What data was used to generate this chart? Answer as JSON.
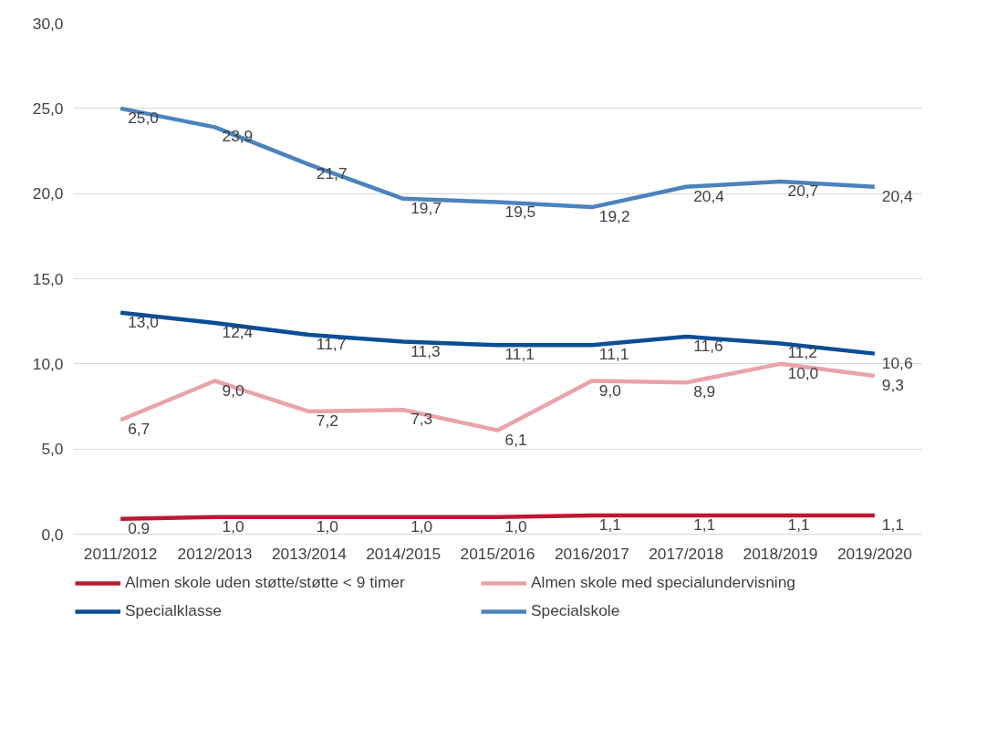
{
  "chart_data": {
    "type": "line",
    "categories": [
      "2011/2012",
      "2012/2013",
      "2013/2014",
      "2014/2015",
      "2015/2016",
      "2016/2017",
      "2017/2018",
      "2018/2019",
      "2019/2020"
    ],
    "series": [
      {
        "name": "Almen skole uden støtte/støtte < 9 timer",
        "color": "#c0182f",
        "values": [
          0.9,
          1.0,
          1.0,
          1.0,
          1.0,
          1.1,
          1.1,
          1.1,
          1.1
        ],
        "value_labels": [
          "0,9",
          "1,0",
          "1,0",
          "1,0",
          "1,0",
          "1,1",
          "1,1",
          "1,1",
          "1,1"
        ]
      },
      {
        "name": "Almen skole med specialundervisning",
        "color": "#e9a3a9",
        "values": [
          6.7,
          9.0,
          7.2,
          7.3,
          6.1,
          9.0,
          8.9,
          10.0,
          9.3
        ],
        "value_labels": [
          "6,7",
          "9,0",
          "7,2",
          "7,3",
          "6,1",
          "9,0",
          "8,9",
          "10,0",
          "9,3"
        ]
      },
      {
        "name": "Specialklasse",
        "color": "#0a4d97",
        "values": [
          13.0,
          12.4,
          11.7,
          11.3,
          11.1,
          11.1,
          11.6,
          11.2,
          10.6
        ],
        "value_labels": [
          "13,0",
          "12,4",
          "11,7",
          "11,3",
          "11,1",
          "11,1",
          "11,6",
          "11,2",
          "10,6"
        ]
      },
      {
        "name": "Specialskole",
        "color": "#4a83bd",
        "values": [
          25.0,
          23.9,
          21.7,
          19.7,
          19.5,
          19.2,
          20.4,
          20.7,
          20.4
        ],
        "value_labels": [
          "25,0",
          "23,9",
          "21,7",
          "19,7",
          "19,5",
          "19,2",
          "20,4",
          "20,7",
          "20,4"
        ]
      }
    ],
    "ylim": [
      0,
      30
    ],
    "yticks": [
      {
        "value": 0,
        "label": "0,0"
      },
      {
        "value": 5,
        "label": "5,0"
      },
      {
        "value": 10,
        "label": "10,0"
      },
      {
        "value": 15,
        "label": "15,0"
      },
      {
        "value": 20,
        "label": "20,0"
      },
      {
        "value": 25,
        "label": "25,0"
      },
      {
        "value": 30,
        "label": "30,0"
      }
    ],
    "grid": "y",
    "legend": "bottom",
    "line_style": "solid"
  }
}
